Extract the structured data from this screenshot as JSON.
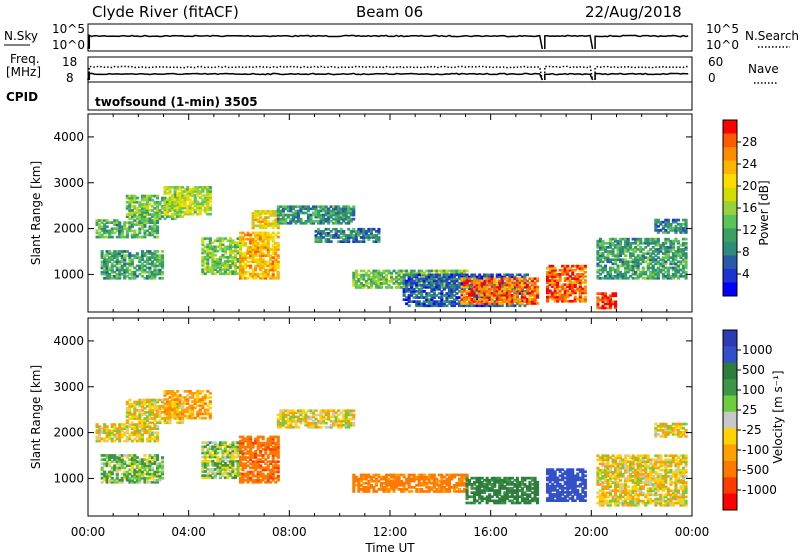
{
  "header": {
    "station": "Clyde River (fitACF)",
    "beam": "Beam 06",
    "date": "22/Aug/2018"
  },
  "top_panels": {
    "nsky_label": "N.Sky",
    "nsearch_label": "N.Search",
    "nsky_left_ticks": [
      "10^5",
      "10^0"
    ],
    "nsky_right_ticks": [
      "10^5",
      "10^0"
    ],
    "freq_label_1": "Freq.",
    "freq_label_2": "[MHz]",
    "nave_label": "Nave",
    "freq_ticks": [
      "18",
      "8"
    ],
    "nave_ticks": [
      "60",
      "0"
    ],
    "cpid_label": "CPID",
    "cpid_text": "twofsound (1-min) 3505",
    "data_gaps_hours": [
      [
        17.95,
        18.1
      ],
      [
        20.0,
        20.15
      ]
    ]
  },
  "colorbars": {
    "power": {
      "label": "Power [dB]",
      "ticks": [
        "28",
        "24",
        "20",
        "16",
        "12",
        "8",
        "4"
      ],
      "colors": [
        "#ff0000",
        "#ff5a00",
        "#ff8c00",
        "#ffb400",
        "#ffdc00",
        "#d2dc00",
        "#96d23c",
        "#5ac35a",
        "#3ca064",
        "#2d8c78",
        "#285aaa",
        "#1e32d2",
        "#0000ff"
      ]
    },
    "velocity": {
      "label": "Velocity [m s⁻¹]",
      "ticks": [
        "1000",
        "500",
        "100",
        "25",
        "-25",
        "-100",
        "-500",
        "-1000"
      ],
      "colors": [
        "#2d3cb4",
        "#3250c8",
        "#2d7d3c",
        "#3c9646",
        "#6ecd3c",
        "#c8c8c8",
        "#ffd200",
        "#ffa000",
        "#ff7800",
        "#ff3c00",
        "#ff0000"
      ]
    }
  },
  "chart_data": [
    {
      "type": "heatmap",
      "title": "Beam 06",
      "ylabel": "Slant Range [km]",
      "xlabel": "",
      "xlim": [
        "00:00",
        "24:00"
      ],
      "ylim": [
        180,
        4500
      ],
      "y_ticks": [
        "1000",
        "2000",
        "3000",
        "4000"
      ],
      "colorbar": "Power [dB]",
      "clim": [
        0,
        30
      ],
      "regions": [
        {
          "t": [
            0.3,
            2.8
          ],
          "r": [
            1800,
            2200
          ],
          "v": 11
        },
        {
          "t": [
            0.5,
            3.0
          ],
          "r": [
            900,
            1500
          ],
          "v": 10
        },
        {
          "t": [
            1.5,
            3.8
          ],
          "r": [
            2200,
            2700
          ],
          "v": 13
        },
        {
          "t": [
            3.0,
            4.8
          ],
          "r": [
            2300,
            2900
          ],
          "v": 16
        },
        {
          "t": [
            4.5,
            6.0
          ],
          "r": [
            1000,
            1800
          ],
          "v": 14
        },
        {
          "t": [
            6.0,
            7.5
          ],
          "r": [
            900,
            1900
          ],
          "v": 22
        },
        {
          "t": [
            6.5,
            7.5
          ],
          "r": [
            2000,
            2400
          ],
          "v": 20
        },
        {
          "t": [
            7.5,
            10.5
          ],
          "r": [
            2100,
            2500
          ],
          "v": 9
        },
        {
          "t": [
            9.0,
            11.5
          ],
          "r": [
            1700,
            2000
          ],
          "v": 7
        },
        {
          "t": [
            10.5,
            15.0
          ],
          "r": [
            700,
            1100
          ],
          "v": 13
        },
        {
          "t": [
            12.5,
            17.5
          ],
          "r": [
            300,
            1000
          ],
          "v": 5
        },
        {
          "t": [
            14.8,
            17.9
          ],
          "r": [
            350,
            900
          ],
          "v": 26
        },
        {
          "t": [
            18.2,
            19.8
          ],
          "r": [
            400,
            1200
          ],
          "v": 27
        },
        {
          "t": [
            20.2,
            21.0
          ],
          "r": [
            250,
            600
          ],
          "v": 30
        },
        {
          "t": [
            20.2,
            23.8
          ],
          "r": [
            900,
            1800
          ],
          "v": 10
        },
        {
          "t": [
            22.5,
            23.8
          ],
          "r": [
            1900,
            2200
          ],
          "v": 8
        }
      ]
    },
    {
      "type": "heatmap",
      "title": "",
      "ylabel": "Slant Range [km]",
      "xlabel": "Time UT",
      "xlim": [
        "00:00",
        "24:00"
      ],
      "ylim": [
        180,
        4500
      ],
      "y_ticks": [
        "1000",
        "2000",
        "3000",
        "4000"
      ],
      "x_ticks": [
        "00:00",
        "04:00",
        "08:00",
        "12:00",
        "16:00",
        "20:00",
        "00:00"
      ],
      "colorbar": "Velocity [m s⁻¹]",
      "clim": [
        -1000,
        1000
      ],
      "regions": [
        {
          "t": [
            0.3,
            2.8
          ],
          "r": [
            1800,
            2200
          ],
          "v": 0
        },
        {
          "t": [
            0.5,
            3.0
          ],
          "r": [
            900,
            1500
          ],
          "v": 80
        },
        {
          "t": [
            1.5,
            3.8
          ],
          "r": [
            2200,
            2700
          ],
          "v": 0
        },
        {
          "t": [
            3.0,
            4.8
          ],
          "r": [
            2300,
            2900
          ],
          "v": -50
        },
        {
          "t": [
            4.5,
            6.0
          ],
          "r": [
            1000,
            1800
          ],
          "v": 60
        },
        {
          "t": [
            6.0,
            7.5
          ],
          "r": [
            900,
            1900
          ],
          "v": -200
        },
        {
          "t": [
            7.5,
            10.5
          ],
          "r": [
            2100,
            2500
          ],
          "v": 0
        },
        {
          "t": [
            10.5,
            15.0
          ],
          "r": [
            700,
            1100
          ],
          "v": -150
        },
        {
          "t": [
            15.0,
            17.9
          ],
          "r": [
            450,
            1000
          ],
          "v": 300
        },
        {
          "t": [
            18.2,
            19.8
          ],
          "r": [
            500,
            1200
          ],
          "v": 600
        },
        {
          "t": [
            20.2,
            23.8
          ],
          "r": [
            400,
            1500
          ],
          "v": 0
        },
        {
          "t": [
            22.5,
            23.8
          ],
          "r": [
            1900,
            2200
          ],
          "v": 0
        }
      ]
    }
  ]
}
